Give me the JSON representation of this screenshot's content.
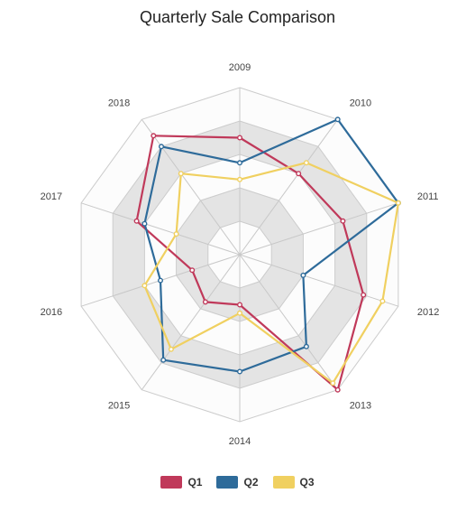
{
  "chart_data": {
    "type": "radar",
    "title": "Quarterly Sale Comparison",
    "categories": [
      "2009",
      "2010",
      "2011",
      "2012",
      "2013",
      "2014",
      "2015",
      "2016",
      "2017",
      "2018"
    ],
    "series": [
      {
        "name": "Q1",
        "color": "#c0395a",
        "values": [
          70,
          60,
          65,
          78,
          100,
          30,
          35,
          30,
          65,
          88
        ]
      },
      {
        "name": "Q2",
        "color": "#2e6b9a",
        "values": [
          55,
          100,
          100,
          40,
          68,
          70,
          78,
          50,
          60,
          80
        ]
      },
      {
        "name": "Q3",
        "color": "#f0d060",
        "values": [
          45,
          68,
          100,
          90,
          95,
          35,
          70,
          60,
          40,
          60
        ]
      }
    ],
    "rlim": [
      0,
      100
    ],
    "rings": 5,
    "legend_position": "bottom"
  }
}
